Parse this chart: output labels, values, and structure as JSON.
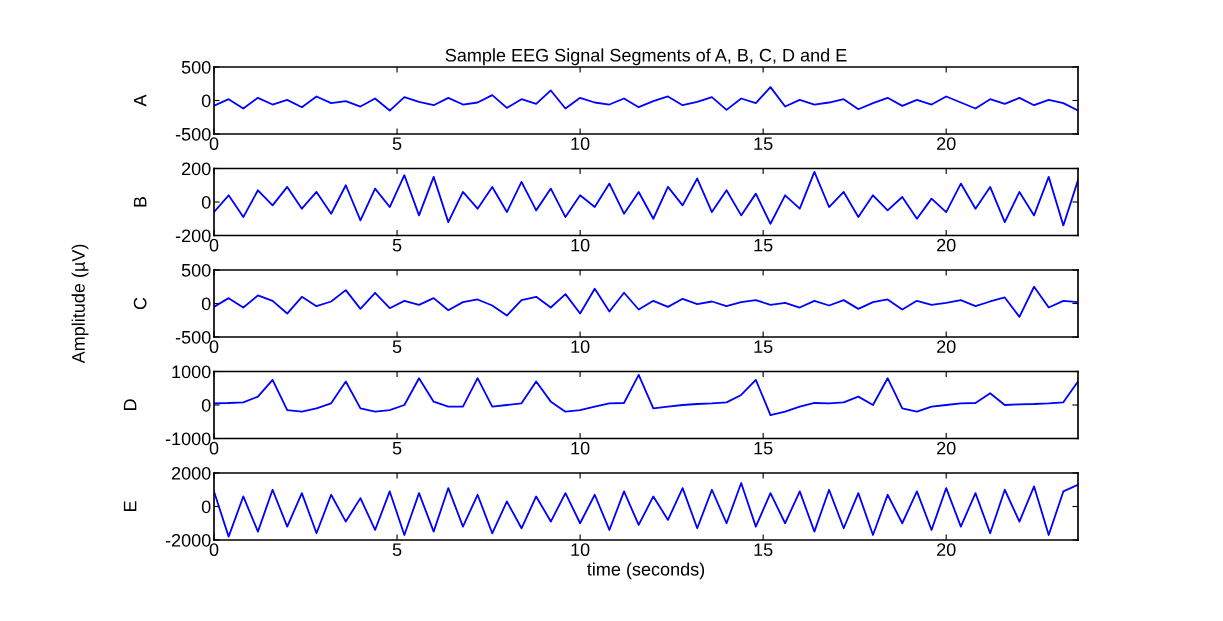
{
  "chart_data": [
    {
      "type": "line",
      "title": "Sample EEG Signal Segments of A, B, C, D and E",
      "ylabel": "A",
      "xlim": [
        0,
        23.6
      ],
      "xticks": [
        0,
        5,
        10,
        15,
        20
      ],
      "ylim": [
        -500,
        500
      ],
      "yticks": [
        -500,
        0,
        500
      ],
      "grid": false,
      "x": [
        0,
        0.4,
        0.8,
        1.2,
        1.6,
        2.0,
        2.4,
        2.8,
        3.2,
        3.6,
        4.0,
        4.4,
        4.8,
        5.2,
        5.6,
        6.0,
        6.4,
        6.8,
        7.2,
        7.6,
        8.0,
        8.4,
        8.8,
        9.2,
        9.6,
        10.0,
        10.4,
        10.8,
        11.2,
        11.6,
        12.0,
        12.4,
        12.8,
        13.2,
        13.6,
        14.0,
        14.4,
        14.8,
        15.2,
        15.6,
        16.0,
        16.4,
        16.8,
        17.2,
        17.6,
        18.0,
        18.4,
        18.8,
        19.2,
        19.6,
        20.0,
        20.4,
        20.8,
        21.2,
        21.6,
        22.0,
        22.4,
        22.8,
        23.2,
        23.6
      ],
      "series": [
        {
          "color": "#0000ff",
          "values": [
            -80,
            20,
            -120,
            40,
            -60,
            10,
            -100,
            60,
            -40,
            -10,
            -90,
            30,
            -150,
            50,
            -20,
            -70,
            40,
            -60,
            -30,
            80,
            -110,
            20,
            -50,
            150,
            -120,
            40,
            -30,
            -60,
            30,
            -100,
            -10,
            60,
            -70,
            -20,
            50,
            -140,
            30,
            -40,
            200,
            -90,
            10,
            -60,
            -30,
            20,
            -130,
            -40,
            40,
            -80,
            10,
            -60,
            60,
            -30,
            -120,
            20,
            -50,
            40,
            -70,
            10,
            -40,
            -150
          ]
        }
      ]
    },
    {
      "type": "line",
      "ylabel": "B",
      "xlim": [
        0,
        23.6
      ],
      "xticks": [
        0,
        5,
        10,
        15,
        20
      ],
      "ylim": [
        -200,
        200
      ],
      "yticks": [
        -200,
        0,
        200
      ],
      "grid": false,
      "x": [
        0,
        0.4,
        0.8,
        1.2,
        1.6,
        2.0,
        2.4,
        2.8,
        3.2,
        3.6,
        4.0,
        4.4,
        4.8,
        5.2,
        5.6,
        6.0,
        6.4,
        6.8,
        7.2,
        7.6,
        8.0,
        8.4,
        8.8,
        9.2,
        9.6,
        10.0,
        10.4,
        10.8,
        11.2,
        11.6,
        12.0,
        12.4,
        12.8,
        13.2,
        13.6,
        14.0,
        14.4,
        14.8,
        15.2,
        15.6,
        16.0,
        16.4,
        16.8,
        17.2,
        17.6,
        18.0,
        18.4,
        18.8,
        19.2,
        19.6,
        20.0,
        20.4,
        20.8,
        21.2,
        21.6,
        22.0,
        22.4,
        22.8,
        23.2,
        23.6
      ],
      "series": [
        {
          "color": "#0000ff",
          "values": [
            -60,
            40,
            -90,
            70,
            -20,
            90,
            -40,
            60,
            -70,
            100,
            -110,
            80,
            -30,
            160,
            -80,
            150,
            -120,
            60,
            -40,
            90,
            -60,
            120,
            -50,
            80,
            -90,
            40,
            -30,
            110,
            -70,
            60,
            -100,
            90,
            -20,
            140,
            -60,
            70,
            -80,
            50,
            -130,
            40,
            -40,
            180,
            -30,
            60,
            -90,
            40,
            -50,
            30,
            -100,
            20,
            -60,
            110,
            -40,
            90,
            -120,
            60,
            -80,
            150,
            -140,
            130
          ]
        }
      ]
    },
    {
      "type": "line",
      "ylabel": "C",
      "annotations": [
        "Amplitude (µV)"
      ],
      "xlim": [
        0,
        23.6
      ],
      "xticks": [
        0,
        5,
        10,
        15,
        20
      ],
      "ylim": [
        -500,
        500
      ],
      "yticks": [
        -500,
        0,
        500
      ],
      "grid": false,
      "x": [
        0,
        0.4,
        0.8,
        1.2,
        1.6,
        2.0,
        2.4,
        2.8,
        3.2,
        3.6,
        4.0,
        4.4,
        4.8,
        5.2,
        5.6,
        6.0,
        6.4,
        6.8,
        7.2,
        7.6,
        8.0,
        8.4,
        8.8,
        9.2,
        9.6,
        10.0,
        10.4,
        10.8,
        11.2,
        11.6,
        12.0,
        12.4,
        12.8,
        13.2,
        13.6,
        14.0,
        14.4,
        14.8,
        15.2,
        15.6,
        16.0,
        16.4,
        16.8,
        17.2,
        17.6,
        18.0,
        18.4,
        18.8,
        19.2,
        19.6,
        20.0,
        20.4,
        20.8,
        21.2,
        21.6,
        22.0,
        22.4,
        22.8,
        23.2,
        23.6
      ],
      "series": [
        {
          "color": "#0000ff",
          "values": [
            -50,
            80,
            -60,
            120,
            40,
            -150,
            100,
            -40,
            30,
            200,
            -80,
            160,
            -70,
            40,
            -20,
            80,
            -100,
            20,
            60,
            -30,
            -180,
            50,
            100,
            -60,
            140,
            -150,
            220,
            -120,
            160,
            -90,
            40,
            -50,
            70,
            -10,
            30,
            -40,
            20,
            50,
            -20,
            10,
            -60,
            40,
            -30,
            50,
            -80,
            20,
            60,
            -90,
            40,
            -20,
            10,
            50,
            -40,
            30,
            90,
            -200,
            250,
            -60,
            40,
            20
          ]
        }
      ]
    },
    {
      "type": "line",
      "ylabel": "D",
      "xlim": [
        0,
        23.6
      ],
      "xticks": [
        0,
        5,
        10,
        15,
        20
      ],
      "ylim": [
        -1000,
        1000
      ],
      "yticks": [
        -1000,
        0,
        1000
      ],
      "grid": false,
      "x": [
        0,
        0.4,
        0.8,
        1.2,
        1.6,
        2.0,
        2.4,
        2.8,
        3.2,
        3.6,
        4.0,
        4.4,
        4.8,
        5.2,
        5.6,
        6.0,
        6.4,
        6.8,
        7.2,
        7.6,
        8.0,
        8.4,
        8.8,
        9.2,
        9.6,
        10.0,
        10.4,
        10.8,
        11.2,
        11.6,
        12.0,
        12.4,
        12.8,
        13.2,
        13.6,
        14.0,
        14.4,
        14.8,
        15.2,
        15.6,
        16.0,
        16.4,
        16.8,
        17.2,
        17.6,
        18.0,
        18.4,
        18.8,
        19.2,
        19.6,
        20.0,
        20.4,
        20.8,
        21.2,
        21.6,
        22.0,
        22.4,
        22.8,
        23.2,
        23.6
      ],
      "series": [
        {
          "color": "#0000ff",
          "values": [
            50,
            60,
            80,
            250,
            750,
            -150,
            -200,
            -100,
            50,
            700,
            -100,
            -200,
            -150,
            0,
            800,
            100,
            -50,
            -50,
            800,
            -50,
            0,
            50,
            700,
            100,
            -200,
            -150,
            -50,
            50,
            60,
            900,
            -100,
            -50,
            0,
            30,
            50,
            80,
            300,
            750,
            -300,
            -200,
            -50,
            60,
            50,
            80,
            250,
            0,
            800,
            -100,
            -200,
            -50,
            0,
            50,
            60,
            350,
            0,
            20,
            30,
            50,
            80,
            700
          ]
        }
      ]
    },
    {
      "type": "line",
      "ylabel": "E",
      "xlabel": "time (seconds)",
      "xlim": [
        0,
        23.6
      ],
      "xticks": [
        0,
        5,
        10,
        15,
        20
      ],
      "ylim": [
        -2000,
        2000
      ],
      "yticks": [
        -2000,
        0,
        2000
      ],
      "grid": false,
      "x": [
        0,
        0.4,
        0.8,
        1.2,
        1.6,
        2.0,
        2.4,
        2.8,
        3.2,
        3.6,
        4.0,
        4.4,
        4.8,
        5.2,
        5.6,
        6.0,
        6.4,
        6.8,
        7.2,
        7.6,
        8.0,
        8.4,
        8.8,
        9.2,
        9.6,
        10.0,
        10.4,
        10.8,
        11.2,
        11.6,
        12.0,
        12.4,
        12.8,
        13.2,
        13.6,
        14.0,
        14.4,
        14.8,
        15.2,
        15.6,
        16.0,
        16.4,
        16.8,
        17.2,
        17.6,
        18.0,
        18.4,
        18.8,
        19.2,
        19.6,
        20.0,
        20.4,
        20.8,
        21.2,
        21.6,
        22.0,
        22.4,
        22.8,
        23.2,
        23.6
      ],
      "series": [
        {
          "color": "#0000ff",
          "values": [
            900,
            -1800,
            600,
            -1500,
            1000,
            -1200,
            800,
            -1600,
            700,
            -900,
            500,
            -1400,
            900,
            -1700,
            800,
            -1500,
            1100,
            -1200,
            700,
            -1600,
            300,
            -1300,
            600,
            -900,
            800,
            -1000,
            700,
            -1400,
            900,
            -1100,
            600,
            -800,
            1100,
            -1300,
            1000,
            -1000,
            1400,
            -1200,
            800,
            -1000,
            900,
            -1500,
            1000,
            -1300,
            800,
            -1700,
            700,
            -1000,
            900,
            -1400,
            1100,
            -1200,
            800,
            -1600,
            1000,
            -900,
            1200,
            -1700,
            900,
            1300
          ]
        }
      ]
    }
  ]
}
